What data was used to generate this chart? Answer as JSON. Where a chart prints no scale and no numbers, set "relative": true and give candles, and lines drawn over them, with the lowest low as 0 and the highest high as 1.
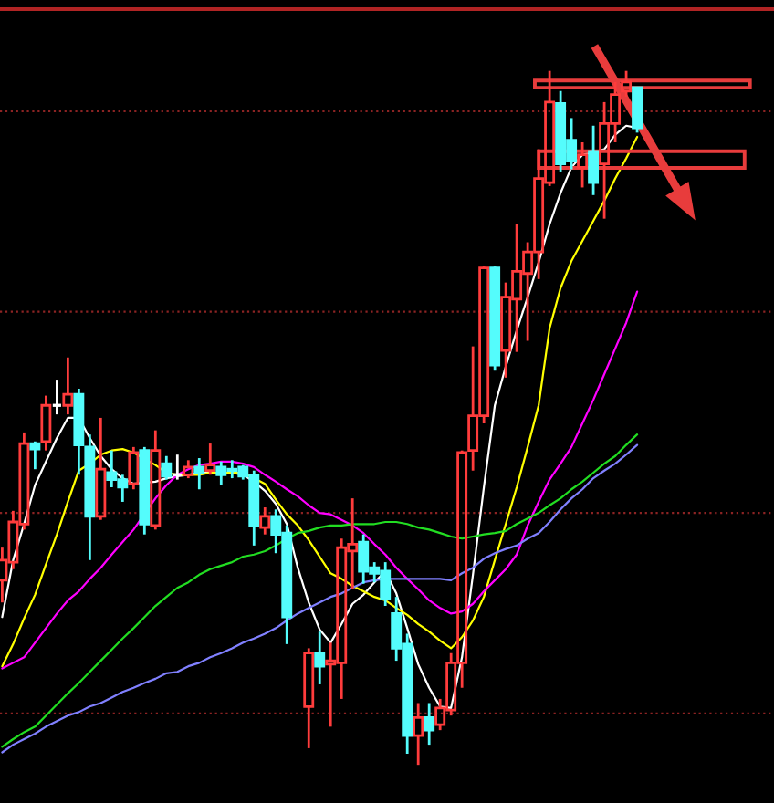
{
  "chart_data": {
    "type": "candlestick",
    "relative": true,
    "categories": [
      null,
      null,
      null,
      null,
      null,
      null,
      null,
      null,
      null,
      null,
      null,
      null,
      null,
      null,
      null,
      null,
      null,
      null,
      null,
      null,
      null,
      null,
      null,
      null,
      null,
      null,
      null,
      null,
      null,
      null,
      null,
      null,
      null,
      null,
      null,
      null,
      null,
      null,
      null,
      null,
      null,
      null,
      null,
      null,
      null,
      null,
      null,
      null,
      null,
      null,
      null,
      null,
      null,
      null,
      null,
      null,
      null,
      null,
      null,
      null,
      null,
      null,
      null,
      null,
      null,
      null,
      null,
      null,
      null,
      null,
      null
    ],
    "ohlc": [
      [
        0.266,
        0.313,
        0.234,
        0.295
      ],
      [
        0.292,
        0.366,
        0.282,
        0.35
      ],
      [
        0.347,
        0.479,
        0.339,
        0.463
      ],
      [
        0.463,
        0.466,
        0.426,
        0.455
      ],
      [
        0.466,
        0.532,
        0.453,
        0.518
      ],
      [
        0.518,
        0.555,
        0.505,
        0.518
      ],
      [
        0.518,
        0.587,
        0.505,
        0.534
      ],
      [
        0.534,
        0.542,
        0.418,
        0.461
      ],
      [
        0.458,
        0.476,
        0.295,
        0.358
      ],
      [
        0.358,
        0.5,
        0.353,
        0.426
      ],
      [
        0.421,
        0.453,
        0.4,
        0.411
      ],
      [
        0.411,
        0.418,
        0.379,
        0.4
      ],
      [
        0.405,
        0.458,
        0.397,
        0.45
      ],
      [
        0.453,
        0.458,
        0.332,
        0.347
      ],
      [
        0.345,
        0.482,
        0.339,
        0.453
      ],
      [
        0.434,
        0.445,
        0.411,
        0.416
      ],
      [
        0.418,
        0.447,
        0.411,
        0.418
      ],
      [
        0.418,
        0.439,
        0.413,
        0.429
      ],
      [
        0.429,
        0.442,
        0.397,
        0.421
      ],
      [
        0.424,
        0.463,
        0.418,
        0.432
      ],
      [
        0.429,
        0.437,
        0.403,
        0.418
      ],
      [
        0.426,
        0.439,
        0.413,
        0.424
      ],
      [
        0.429,
        0.432,
        0.411,
        0.416
      ],
      [
        0.418,
        0.424,
        0.316,
        0.345
      ],
      [
        0.342,
        0.371,
        0.332,
        0.358
      ],
      [
        0.358,
        0.368,
        0.305,
        0.332
      ],
      [
        0.334,
        0.345,
        0.174,
        0.213
      ],
      null,
      [
        0.084,
        0.168,
        0.024,
        0.161
      ],
      [
        0.161,
        0.192,
        0.116,
        0.142
      ],
      [
        0.145,
        0.176,
        0.055,
        0.15
      ],
      [
        0.147,
        0.326,
        0.095,
        0.313
      ],
      [
        0.308,
        0.384,
        0.253,
        0.318
      ],
      [
        0.321,
        0.332,
        0.261,
        0.279
      ],
      [
        0.284,
        0.292,
        0.263,
        0.276
      ],
      [
        0.279,
        0.292,
        0.229,
        0.239
      ],
      [
        0.218,
        0.242,
        0.15,
        0.168
      ],
      [
        0.174,
        0.189,
        0.016,
        0.042
      ],
      [
        0.042,
        0.089,
        0,
        0.068
      ],
      [
        0.068,
        0.089,
        0.029,
        0.05
      ],
      [
        0.058,
        0.095,
        0.05,
        0.082
      ],
      [
        0.079,
        0.161,
        0.071,
        0.147
      ],
      [
        0.147,
        0.453,
        0.111,
        0.45
      ],
      [
        0.453,
        0.603,
        0.424,
        0.503
      ],
      [
        0.503,
        0.718,
        0.492,
        0.716
      ],
      [
        0.716,
        0.718,
        0.568,
        0.576
      ],
      [
        0.597,
        0.695,
        0.558,
        0.674
      ],
      [
        0.671,
        0.779,
        0.595,
        0.711
      ],
      [
        0.708,
        0.753,
        0.611,
        0.739
      ],
      [
        0.739,
        0.887,
        0.7,
        0.845
      ],
      [
        0.839,
        1,
        0.834,
        0.955
      ],
      [
        0.953,
        0.971,
        0.855,
        0.866
      ],
      [
        0.9,
        0.932,
        0.858,
        0.871
      ],
      [
        0.861,
        0.897,
        0.832,
        0.879
      ],
      [
        0.884,
        0.921,
        0.821,
        0.839
      ],
      [
        0.866,
        0.955,
        0.787,
        0.924
      ],
      [
        0.924,
        0.984,
        0.897,
        0.966
      ],
      [
        0.971,
        1,
        0.963,
        0.984
      ],
      [
        0.976,
        0.976,
        0.911,
        0.918
      ],
      null,
      null,
      null,
      null,
      null,
      null,
      null,
      null,
      null,
      null,
      null,
      null
    ],
    "colors": [
      "#ff3c3c",
      "#ff3c3c",
      "#ff3c3c",
      "#54fcfc",
      "#ff3c3c",
      "#ffffff",
      "#ff3c3c",
      "#54fcfc",
      "#54fcfc",
      "#ff3c3c",
      "#54fcfc",
      "#54fcfc",
      "#ff3c3c",
      "#54fcfc",
      "#ff3c3c",
      "#54fcfc",
      "#ffffff",
      "#ff3c3c",
      "#54fcfc",
      "#ff3c3c",
      "#54fcfc",
      "#54fcfc",
      "#54fcfc",
      "#54fcfc",
      "#ff3c3c",
      "#54fcfc",
      "#54fcfc",
      null,
      "#ff3c3c",
      "#54fcfc",
      "#ff3c3c",
      "#ff3c3c",
      "#ff3c3c",
      "#54fcfc",
      "#54fcfc",
      "#54fcfc",
      "#54fcfc",
      "#54fcfc",
      "#ff3c3c",
      "#54fcfc",
      "#ff3c3c",
      "#ff3c3c",
      "#ff3c3c",
      "#ff3c3c",
      "#ff3c3c",
      "#54fcfc",
      "#ff3c3c",
      "#ff3c3c",
      "#ff3c3c",
      "#ff3c3c",
      "#ff3c3c",
      "#54fcfc",
      "#54fcfc",
      "#ff3c3c",
      "#54fcfc",
      "#ff3c3c",
      "#ff3c3c",
      "#ff3c3c",
      "#54fcfc",
      null,
      null,
      null,
      null,
      null,
      null,
      null,
      null,
      null,
      null,
      null,
      null
    ],
    "series": [
      {
        "type": "line",
        "color": "#ffffff",
        "values": [
          0.213,
          0.295,
          0.347,
          0.403,
          0.437,
          0.471,
          0.5,
          0.5,
          0.471,
          0.445,
          0.426,
          0.413,
          0.405,
          null,
          0.408,
          0.413,
          0.416,
          0.418,
          0.421,
          0.421,
          0.421,
          0.421,
          0.418,
          0.408,
          0.395,
          0.376,
          0.347,
          0.284,
          0.234,
          0.195,
          0.176,
          0.203,
          0.232,
          0.245,
          0.263,
          0.279,
          0.247,
          0.197,
          0.145,
          0.111,
          0.084,
          0.082,
          0.155,
          0.274,
          0.4,
          0.518,
          0.574,
          0.626,
          0.674,
          0.724,
          0.779,
          0.824,
          0.861,
          0.879,
          null,
          0.887,
          0.908,
          0.921,
          0.918,
          null,
          null,
          null,
          null,
          null,
          null,
          null,
          null,
          null,
          null,
          null,
          null
        ]
      },
      {
        "type": "line",
        "color": "#ffff00",
        "values": [
          0.142,
          0.174,
          0.211,
          0.245,
          0.289,
          0.332,
          0.379,
          0.424,
          0.434,
          0.447,
          0.453,
          0.455,
          0.45,
          null,
          0.432,
          0.421,
          0.418,
          0.418,
          0.418,
          0.421,
          0.421,
          0.421,
          0.421,
          0.413,
          0.405,
          0.382,
          0.361,
          0.345,
          0.324,
          0.3,
          0.276,
          0.268,
          0.258,
          0.25,
          0.242,
          0.237,
          0.226,
          0.216,
          0.203,
          0.192,
          0.179,
          0.168,
          0.184,
          0.208,
          0.242,
          0.295,
          0.347,
          0.4,
          0.458,
          0.518,
          0.629,
          0.687,
          0.726,
          0.755,
          0.784,
          0.813,
          0.845,
          0.874,
          0.905,
          null,
          null,
          null,
          null,
          null,
          null,
          null,
          null,
          null,
          null,
          null,
          null
        ]
      },
      {
        "type": "line",
        "color": "#ff00ff",
        "values": [
          0.139,
          0.147,
          0.155,
          0.176,
          0.197,
          0.218,
          0.237,
          0.25,
          0.268,
          0.284,
          0.303,
          0.321,
          0.339,
          null,
          0.384,
          0.403,
          0.418,
          0.426,
          0.432,
          0.434,
          0.437,
          0.437,
          0.434,
          0.429,
          0.418,
          0.408,
          0.397,
          0.387,
          0.374,
          0.363,
          0.361,
          0.353,
          0.345,
          0.334,
          0.318,
          0.303,
          0.284,
          0.268,
          0.253,
          0.237,
          0.226,
          0.218,
          0.221,
          0.232,
          0.25,
          0.266,
          0.282,
          0.303,
          0.345,
          0.379,
          0.411,
          0.434,
          0.458,
          0.492,
          0.526,
          0.563,
          0.6,
          0.637,
          0.682,
          null,
          null,
          null,
          null,
          null,
          null,
          null,
          null,
          null,
          null,
          null,
          null
        ]
      },
      {
        "type": "line",
        "color": "#22dd22",
        "values": [
          0.026,
          0.037,
          0.047,
          0.055,
          0.071,
          0.087,
          0.103,
          0.118,
          0.134,
          0.15,
          0.166,
          0.182,
          0.197,
          0.213,
          0.229,
          0.242,
          0.255,
          0.263,
          0.274,
          0.282,
          0.287,
          0.292,
          0.3,
          0.303,
          0.308,
          0.316,
          0.326,
          0.334,
          0.337,
          0.342,
          0.345,
          0.345,
          0.347,
          0.347,
          0.347,
          0.35,
          0.35,
          0.347,
          0.342,
          0.339,
          0.334,
          0.329,
          0.326,
          0.329,
          0.332,
          0.334,
          0.337,
          0.347,
          0.355,
          0.363,
          0.374,
          0.384,
          0.397,
          0.408,
          0.421,
          0.434,
          0.445,
          0.461,
          0.476,
          null,
          null,
          null,
          null,
          null,
          null,
          null,
          null,
          null,
          null,
          null,
          null
        ]
      },
      {
        "type": "line",
        "color": "#8080ff",
        "values": [
          0.018,
          0.029,
          0.037,
          0.045,
          0.055,
          0.063,
          0.071,
          0.076,
          0.084,
          0.089,
          0.097,
          0.105,
          0.111,
          0.118,
          0.124,
          0.132,
          0.134,
          0.142,
          0.147,
          0.155,
          0.161,
          0.168,
          0.176,
          0.182,
          0.189,
          0.197,
          0.208,
          0.218,
          0.226,
          0.234,
          0.242,
          0.247,
          0.255,
          0.263,
          0.266,
          0.268,
          0.268,
          0.268,
          0.268,
          0.268,
          0.268,
          0.266,
          0.276,
          0.284,
          0.297,
          0.305,
          0.311,
          0.316,
          0.326,
          0.334,
          0.35,
          0.368,
          0.384,
          0.397,
          0.413,
          0.424,
          0.434,
          0.447,
          0.461,
          null,
          null,
          null,
          null,
          null,
          null,
          null,
          null,
          null,
          null,
          null,
          null
        ]
      }
    ],
    "ref_lines": [
      {
        "axis": "y",
        "value": 0.942,
        "color": "#8c2323",
        "line_style": "dotted"
      },
      {
        "axis": "y",
        "value": 0.653,
        "color": "#8c2323",
        "line_style": "dotted"
      },
      {
        "axis": "y",
        "value": 0.363,
        "color": "#8c2323",
        "line_style": "dotted"
      },
      {
        "axis": "y",
        "value": 0.074,
        "color": "#8c2323",
        "line_style": "dotted"
      }
    ]
  }
}
